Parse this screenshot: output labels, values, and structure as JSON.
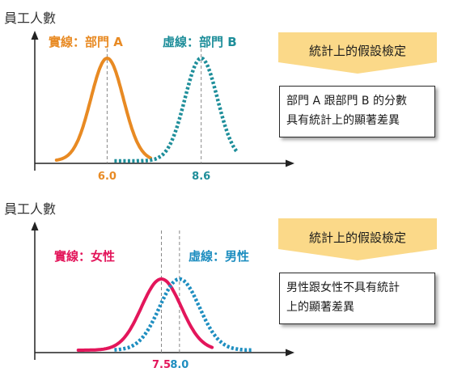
{
  "chart_data": [
    {
      "type": "line",
      "ylabel": "員工人數",
      "series": [
        {
          "name": "實線：部門 A",
          "style": "solid",
          "color": "#e88a23",
          "mean": 6.0,
          "sd": 0.45
        },
        {
          "name": "虛線：部門 B",
          "style": "dotted",
          "color": "#1e8e9a",
          "mean": 8.6,
          "sd": 0.45
        }
      ],
      "x_range": [
        4.0,
        11.0
      ],
      "ticks": [
        {
          "value": 6.0,
          "label": "6.0",
          "color": "#e88a23"
        },
        {
          "value": 8.6,
          "label": "8.6",
          "color": "#1e8e9a"
        }
      ],
      "banner": "統計上的假設檢定",
      "conclusion": [
        "部門 A 跟部門 B 的分數",
        "具有統計上的顯著差異"
      ]
    },
    {
      "type": "line",
      "ylabel": "員工人數",
      "series": [
        {
          "name": "實線：女性",
          "style": "solid",
          "color": "#e3165b",
          "mean": 7.5,
          "sd": 0.55
        },
        {
          "name": "虛線：男性",
          "style": "dotted",
          "color": "#1e8ec0",
          "mean": 8.0,
          "sd": 0.55
        }
      ],
      "x_range": [
        4.0,
        11.0
      ],
      "ticks": [
        {
          "value": 7.5,
          "label": "7.5",
          "color": "#e3165b"
        },
        {
          "value": 8.0,
          "label": "8.0",
          "color": "#1e8ec0"
        }
      ],
      "banner": "統計上的假設檢定",
      "conclusion": [
        "男性跟女性不具有統計",
        "上的顯著差異"
      ]
    }
  ],
  "colors": {
    "banner_fill": "#fbd989",
    "axis": "#222222",
    "guide": "#888888"
  }
}
